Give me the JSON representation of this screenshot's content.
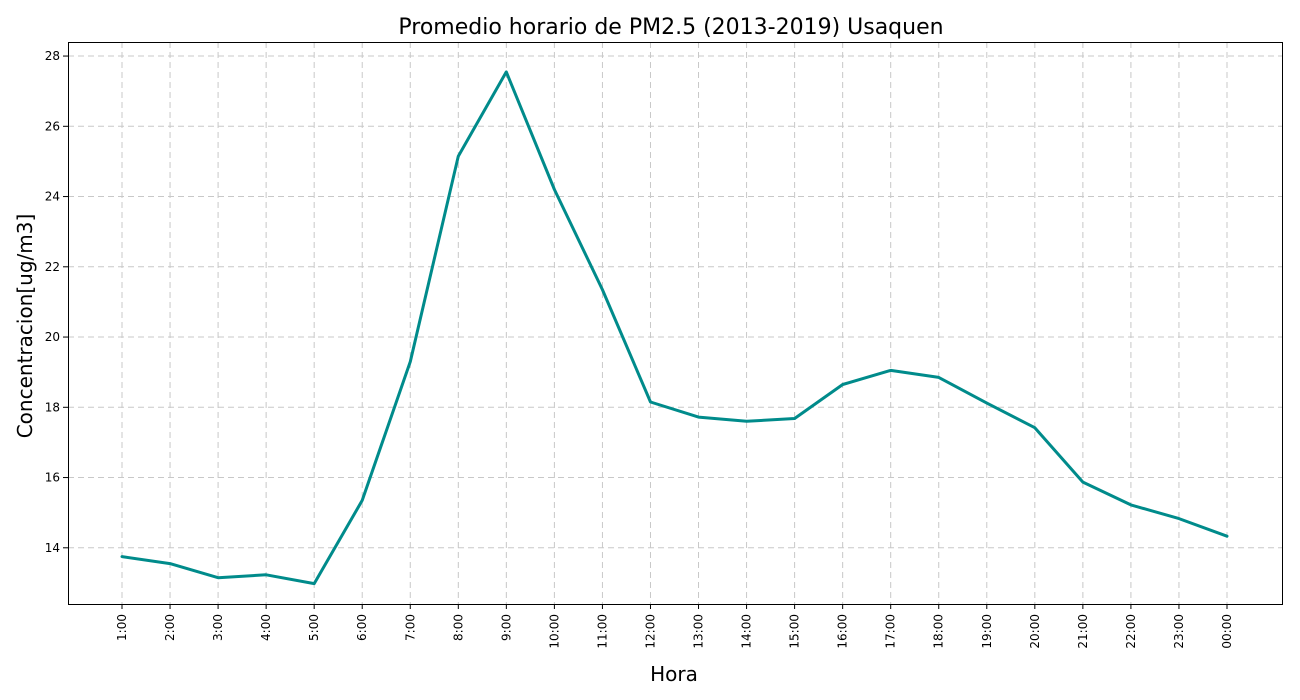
{
  "chart_data": {
    "type": "line",
    "title": "Promedio horario de PM2.5 (2013-2019) Usaquen",
    "xlabel": "Hora",
    "ylabel": "Concentracion[ug/m3]",
    "categories": [
      "1:00",
      "2:00",
      "3:00",
      "4:00",
      "5:00",
      "6:00",
      "7:00",
      "8:00",
      "9:00",
      "10:00",
      "11:00",
      "12:00",
      "13:00",
      "14:00",
      "15:00",
      "16:00",
      "17:00",
      "18:00",
      "19:00",
      "20:00",
      "21:00",
      "22:00",
      "23:00",
      "00:00"
    ],
    "series": [
      {
        "values": [
          13.75,
          13.55,
          13.15,
          13.23,
          12.98,
          15.35,
          19.3,
          25.15,
          27.55,
          24.2,
          21.35,
          18.15,
          17.72,
          17.6,
          17.68,
          18.65,
          19.05,
          18.85,
          18.12,
          17.42,
          15.87,
          15.22,
          14.83,
          14.33
        ],
        "color": "#008b8b"
      }
    ],
    "yticks": [
      14,
      16,
      18,
      20,
      22,
      24,
      26,
      28
    ],
    "ylim": [
      12.4,
      28.4
    ],
    "grid": true,
    "grid_style": "dashed",
    "legend": "none"
  }
}
